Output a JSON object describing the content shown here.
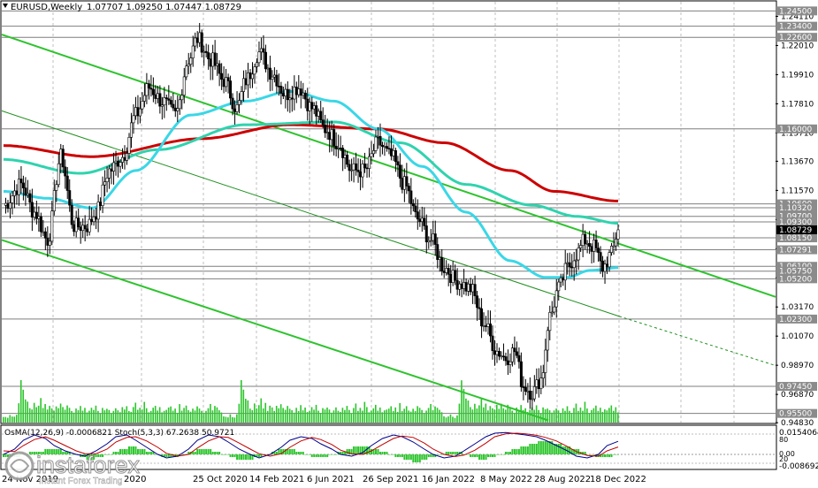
{
  "header": {
    "symbol": "EURUSD,Weekly",
    "ohlc": "1.07707 1.09250 1.07447 1.08729"
  },
  "oscillator": {
    "label": "OsMA(12,26,9) -0.0006821  Stoch(5,3,3) 67.2638 50.9721",
    "scale_top": "0.0154064",
    "scale_80": "80",
    "scale_00": "0.00",
    "scale_20": "20",
    "scale_bottom": "-0.008692"
  },
  "watermark": {
    "brand": "instaforex",
    "tagline": "Instant Forex Trading"
  },
  "colors": {
    "bull": "#ffffff",
    "bear": "#000000",
    "ema_red": "#cc0000",
    "ma_cyan": "#3ad7e6",
    "ma_teal": "#2fd3ae",
    "channel": "#2ec32e",
    "volume": "#2bc52b",
    "osma": "#2bc52b",
    "stoch_main": "#00008b",
    "stoch_signal": "#c00000",
    "current_price_tag": "#000000",
    "level_tag": "#8b8b8b"
  },
  "chart_data": {
    "type": "candlestick",
    "title": "EURUSD,Weekly",
    "ylim": [
      0.9484,
      1.2516
    ],
    "y_ticks": [
      "1.24110",
      "1.22010",
      "1.19910",
      "1.17810",
      "1.15710",
      "1.13670",
      "1.11570",
      "1.09470",
      "1.07370",
      "1.05270",
      "1.03170",
      "1.01070",
      "0.98970",
      "0.96870",
      "0.94830"
    ],
    "x_tick_labels": [
      "24 Nov 2019",
      "...",
      "2020",
      "25 Oct 2020",
      "14 Feb 2021",
      "6 Jun 2021",
      "26 Sep 2021",
      "16 Jan 2022",
      "8 May 2022",
      "28 Aug 2022",
      "18 Dec 2022"
    ],
    "levels": [
      {
        "price": 1.245,
        "label": "1.24500"
      },
      {
        "price": 1.234,
        "label": "1.23400"
      },
      {
        "price": 1.226,
        "label": "1.22600"
      },
      {
        "price": 1.16,
        "label": "1.16000"
      },
      {
        "price": 1.106,
        "label": "1.10600"
      },
      {
        "price": 1.1032,
        "label": "1.10320"
      },
      {
        "price": 1.097,
        "label": "1.09700"
      },
      {
        "price": 1.093,
        "label": "1.09300"
      },
      {
        "price": 1.0815,
        "label": "1.08150"
      },
      {
        "price": 1.0729,
        "label": "1.07291"
      },
      {
        "price": 1.061,
        "label": "1.06100"
      },
      {
        "price": 1.0575,
        "label": "1.05750"
      },
      {
        "price": 1.052,
        "label": "1.05200"
      },
      {
        "price": 1.023,
        "label": "1.02300"
      },
      {
        "price": 0.9745,
        "label": "0.97450"
      },
      {
        "price": 0.955,
        "label": "0.95500"
      }
    ],
    "current_price": {
      "price": 1.08729,
      "label": "1.08729"
    },
    "close_anchors": [
      [
        0,
        1.105
      ],
      [
        8,
        1.12
      ],
      [
        14,
        1.1
      ],
      [
        20,
        1.08
      ],
      [
        26,
        1.14
      ],
      [
        32,
        1.09
      ],
      [
        38,
        1.09
      ],
      [
        42,
        1.1
      ],
      [
        48,
        1.13
      ],
      [
        54,
        1.14
      ],
      [
        60,
        1.17
      ],
      [
        66,
        1.19
      ],
      [
        72,
        1.18
      ],
      [
        78,
        1.17
      ],
      [
        84,
        1.21
      ],
      [
        88,
        1.225
      ],
      [
        94,
        1.21
      ],
      [
        100,
        1.195
      ],
      [
        106,
        1.175
      ],
      [
        110,
        1.195
      ],
      [
        116,
        1.215
      ],
      [
        122,
        1.2
      ],
      [
        128,
        1.185
      ],
      [
        134,
        1.19
      ],
      [
        140,
        1.175
      ],
      [
        146,
        1.16
      ],
      [
        152,
        1.15
      ],
      [
        158,
        1.13
      ],
      [
        164,
        1.13
      ],
      [
        170,
        1.15
      ],
      [
        176,
        1.14
      ],
      [
        182,
        1.12
      ],
      [
        188,
        1.095
      ],
      [
        194,
        1.08
      ],
      [
        200,
        1.06
      ],
      [
        206,
        1.05
      ],
      [
        212,
        1.045
      ],
      [
        218,
        1.02
      ],
      [
        224,
        1.0
      ],
      [
        228,
        0.995
      ],
      [
        232,
        1.0
      ],
      [
        236,
        0.975
      ],
      [
        240,
        0.97
      ],
      [
        244,
        0.98
      ],
      [
        248,
        1.025
      ],
      [
        252,
        1.045
      ],
      [
        256,
        1.06
      ],
      [
        260,
        1.07
      ],
      [
        264,
        1.08
      ],
      [
        268,
        1.075
      ],
      [
        272,
        1.06
      ],
      [
        276,
        1.07
      ],
      [
        279,
        1.087
      ]
    ],
    "series": [
      {
        "name": "EMA 200",
        "anchors": [
          [
            0,
            1.148
          ],
          [
            40,
            1.14
          ],
          [
            90,
            1.153
          ],
          [
            130,
            1.163
          ],
          [
            170,
            1.16
          ],
          [
            200,
            1.15
          ],
          [
            230,
            1.13
          ],
          [
            250,
            1.115
          ],
          [
            279,
            1.108
          ]
        ]
      },
      {
        "name": "MA 144",
        "anchors": [
          [
            0,
            1.138
          ],
          [
            35,
            1.128
          ],
          [
            70,
            1.145
          ],
          [
            110,
            1.163
          ],
          [
            150,
            1.165
          ],
          [
            180,
            1.15
          ],
          [
            210,
            1.12
          ],
          [
            240,
            1.105
          ],
          [
            260,
            1.097
          ],
          [
            279,
            1.092
          ]
        ]
      },
      {
        "name": "MA 50",
        "anchors": [
          [
            0,
            1.115
          ],
          [
            20,
            1.11
          ],
          [
            40,
            1.103
          ],
          [
            60,
            1.13
          ],
          [
            85,
            1.17
          ],
          [
            110,
            1.18
          ],
          [
            130,
            1.187
          ],
          [
            150,
            1.18
          ],
          [
            170,
            1.16
          ],
          [
            190,
            1.133
          ],
          [
            210,
            1.1
          ],
          [
            230,
            1.065
          ],
          [
            246,
            1.053
          ],
          [
            256,
            1.053
          ],
          [
            266,
            1.058
          ],
          [
            279,
            1.06
          ]
        ]
      }
    ],
    "volume": [
      2,
      2,
      2,
      3,
      2,
      2,
      3,
      8,
      18,
      14,
      10,
      9,
      6,
      5,
      8,
      6,
      7,
      10,
      6,
      8,
      5,
      7,
      6,
      5,
      7,
      6,
      8,
      6,
      5,
      7,
      6,
      5,
      4,
      6,
      5,
      7,
      5,
      6,
      4,
      5,
      6,
      5,
      7,
      5,
      4,
      6,
      5,
      6,
      5,
      4,
      5,
      6,
      5,
      4,
      6,
      5,
      7,
      5,
      4,
      6,
      8,
      5,
      6,
      5,
      9,
      6,
      4,
      5,
      6,
      7,
      5,
      6,
      4,
      5,
      5,
      6,
      7,
      5,
      6,
      4,
      8,
      5,
      6,
      7,
      5,
      4,
      6,
      5,
      7,
      6,
      5,
      4,
      5,
      6,
      8,
      5,
      7,
      6,
      5,
      4
    ],
    "osma": [
      -1,
      -1,
      0,
      1,
      1,
      2,
      2,
      1,
      0,
      -1,
      -2,
      -1,
      0,
      1,
      2,
      3,
      2,
      1,
      0,
      -1,
      -1,
      0,
      1,
      2,
      2,
      1,
      0,
      -1,
      -2,
      -2,
      -1,
      0,
      1,
      2,
      2,
      1,
      0,
      -1,
      -1,
      0,
      1,
      2,
      3,
      3,
      2,
      1,
      0,
      -1,
      -2,
      -3,
      -2,
      -1,
      0,
      1,
      1,
      0,
      -1,
      -2,
      -1,
      0,
      1,
      2,
      3,
      4,
      5,
      5,
      4,
      3,
      2,
      1,
      0,
      -1,
      -1,
      0
    ],
    "stoch_main": [
      30,
      45,
      70,
      85,
      75,
      55,
      40,
      30,
      25,
      40,
      60,
      80,
      85,
      70,
      50,
      30,
      20,
      25,
      45,
      70,
      85,
      80,
      65,
      45,
      30,
      20,
      30,
      50,
      70,
      80,
      75,
      60,
      45,
      30,
      25,
      35,
      55,
      75,
      85,
      80,
      65,
      45,
      30,
      20,
      25,
      40,
      60,
      80,
      90,
      92,
      88,
      85,
      80,
      70,
      55,
      40,
      25,
      20,
      30,
      55,
      67
    ],
    "stoch_signal": [
      40,
      38,
      55,
      72,
      80,
      70,
      55,
      40,
      32,
      32,
      45,
      65,
      78,
      80,
      68,
      50,
      33,
      25,
      30,
      48,
      68,
      80,
      78,
      62,
      45,
      32,
      25,
      32,
      50,
      68,
      78,
      72,
      58,
      42,
      32,
      30,
      40,
      58,
      75,
      82,
      78,
      62,
      45,
      30,
      24,
      28,
      42,
      62,
      80,
      88,
      90,
      88,
      84,
      78,
      68,
      52,
      38,
      27,
      25,
      40,
      51
    ]
  }
}
